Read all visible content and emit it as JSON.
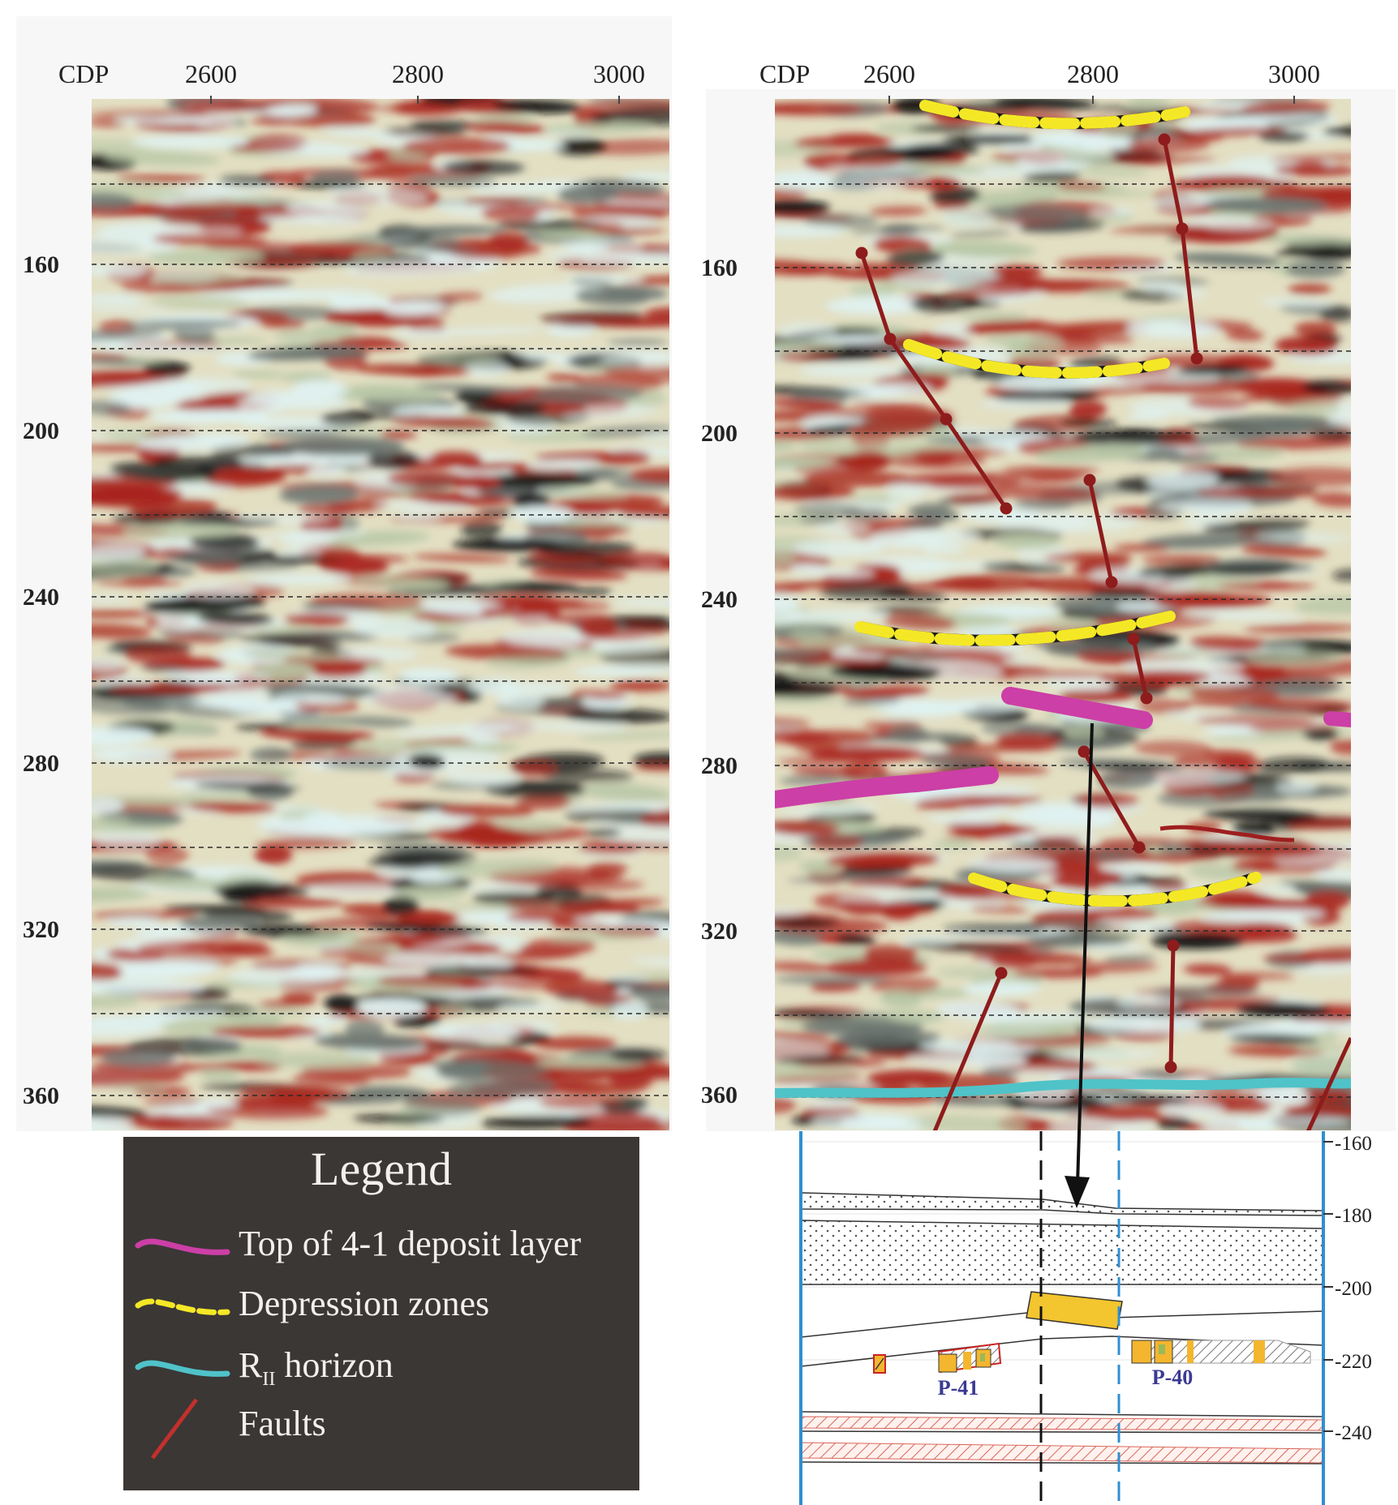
{
  "left_panel": {
    "cdp_label": "CDP",
    "x_ticks": [
      "2600",
      "2800",
      "3000"
    ],
    "y_ticks": [
      "160",
      "200",
      "240",
      "280",
      "320",
      "360"
    ]
  },
  "right_panel": {
    "cdp_label": "CDP",
    "x_ticks": [
      "2600",
      "2800",
      "3000"
    ],
    "y_ticks": [
      "160",
      "200",
      "240",
      "280",
      "320",
      "360"
    ]
  },
  "well_section": {
    "depth_ticks": [
      "-160",
      "-180",
      "-200",
      "-220",
      "-240"
    ],
    "wells": [
      "P-41",
      "P-40"
    ]
  },
  "legend": {
    "title": "Legend",
    "items": [
      {
        "label": "Top of 4-1 deposit layer",
        "color": "#cc3fa6",
        "style": "solid"
      },
      {
        "label": "Depression zones",
        "color": "#f4e826",
        "style": "dashed"
      },
      {
        "label_main": "R",
        "label_sub": "II",
        "label_rest": " horizon",
        "color": "#4fc3c8",
        "style": "solid"
      },
      {
        "label": "Faults",
        "color": "#c4302b",
        "style": "line"
      }
    ]
  },
  "colors": {
    "seismic_red": "#a8251c",
    "seismic_cream": "#e8e3c6",
    "seismic_sage": "#b7c7a6",
    "seismic_ice": "#dff2f2",
    "seismic_gray": "#6b7470",
    "seismic_black": "#121212",
    "fault": "#8e1c1c",
    "depression": "#f4e826",
    "deposit_top": "#cc3fa6",
    "horizon": "#4fc3c8",
    "well_border": "#2f8fd1",
    "orange_fill": "#f3b62e"
  }
}
